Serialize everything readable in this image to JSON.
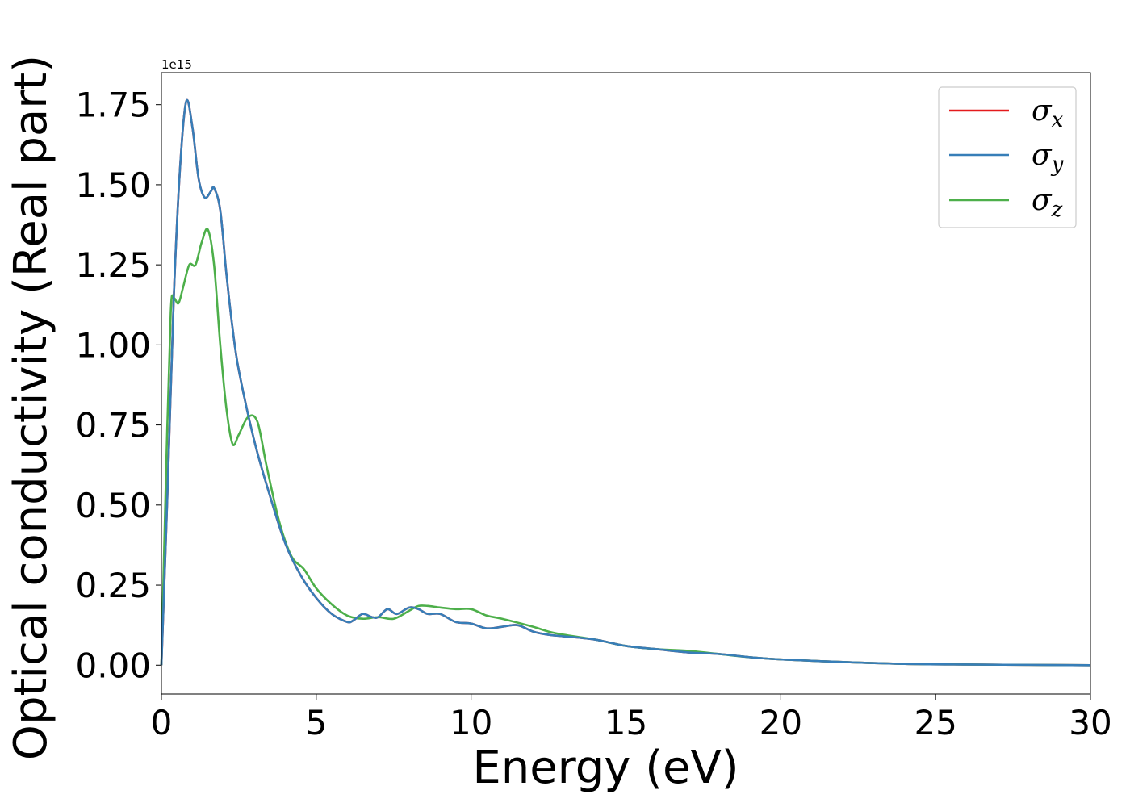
{
  "chart_data": {
    "type": "line",
    "xlabel": "Energy (eV)",
    "ylabel": "Optical conductivity (Real part)",
    "offset_text": "1e15",
    "xlim": [
      0,
      30
    ],
    "ylim": [
      -0.09,
      1.85
    ],
    "x_ticks": [
      0,
      5,
      10,
      15,
      20,
      25,
      30
    ],
    "x_tick_labels": [
      "0",
      "5",
      "10",
      "15",
      "20",
      "25",
      "30"
    ],
    "y_ticks": [
      0.0,
      0.25,
      0.5,
      0.75,
      1.0,
      1.25,
      1.5,
      1.75
    ],
    "y_tick_labels": [
      "0.00",
      "0.25",
      "0.50",
      "0.75",
      "1.00",
      "1.25",
      "1.50",
      "1.75"
    ],
    "grid": false,
    "legend_position": "top-right",
    "series": [
      {
        "name": "σx",
        "symbol": "σ",
        "subscript": "x",
        "color": "#e41a1c",
        "points": [
          [
            0,
            0
          ],
          [
            0.2,
            0.55
          ],
          [
            0.4,
            1.15
          ],
          [
            0.6,
            1.55
          ],
          [
            0.8,
            1.76
          ],
          [
            1.0,
            1.68
          ],
          [
            1.2,
            1.52
          ],
          [
            1.4,
            1.46
          ],
          [
            1.6,
            1.48
          ],
          [
            1.7,
            1.49
          ],
          [
            1.9,
            1.42
          ],
          [
            2.1,
            1.22
          ],
          [
            2.3,
            1.05
          ],
          [
            2.5,
            0.92
          ],
          [
            3.0,
            0.7
          ],
          [
            3.5,
            0.53
          ],
          [
            4.0,
            0.38
          ],
          [
            4.5,
            0.28
          ],
          [
            5.0,
            0.21
          ],
          [
            5.5,
            0.16
          ],
          [
            6.0,
            0.135
          ],
          [
            6.2,
            0.14
          ],
          [
            6.5,
            0.16
          ],
          [
            6.8,
            0.15
          ],
          [
            7.0,
            0.15
          ],
          [
            7.3,
            0.175
          ],
          [
            7.6,
            0.16
          ],
          [
            8.0,
            0.18
          ],
          [
            8.3,
            0.175
          ],
          [
            8.6,
            0.16
          ],
          [
            9.0,
            0.16
          ],
          [
            9.5,
            0.135
          ],
          [
            10.0,
            0.13
          ],
          [
            10.5,
            0.115
          ],
          [
            11.0,
            0.12
          ],
          [
            11.5,
            0.125
          ],
          [
            12.0,
            0.105
          ],
          [
            12.5,
            0.095
          ],
          [
            13.0,
            0.09
          ],
          [
            14.0,
            0.08
          ],
          [
            15.0,
            0.06
          ],
          [
            16.0,
            0.05
          ],
          [
            17.0,
            0.04
          ],
          [
            18.0,
            0.035
          ],
          [
            19.0,
            0.025
          ],
          [
            20.0,
            0.018
          ],
          [
            22.0,
            0.01
          ],
          [
            24.0,
            0.004
          ],
          [
            26.0,
            0.002
          ],
          [
            28.0,
            0.001
          ],
          [
            30.0,
            0.0
          ]
        ]
      },
      {
        "name": "σy",
        "symbol": "σ",
        "subscript": "y",
        "color": "#377eb8",
        "points": [
          [
            0,
            0
          ],
          [
            0.2,
            0.55
          ],
          [
            0.4,
            1.15
          ],
          [
            0.6,
            1.55
          ],
          [
            0.8,
            1.76
          ],
          [
            1.0,
            1.68
          ],
          [
            1.2,
            1.52
          ],
          [
            1.4,
            1.46
          ],
          [
            1.6,
            1.48
          ],
          [
            1.7,
            1.49
          ],
          [
            1.9,
            1.42
          ],
          [
            2.1,
            1.22
          ],
          [
            2.3,
            1.05
          ],
          [
            2.5,
            0.92
          ],
          [
            3.0,
            0.7
          ],
          [
            3.5,
            0.53
          ],
          [
            4.0,
            0.38
          ],
          [
            4.5,
            0.28
          ],
          [
            5.0,
            0.21
          ],
          [
            5.5,
            0.16
          ],
          [
            6.0,
            0.135
          ],
          [
            6.2,
            0.14
          ],
          [
            6.5,
            0.16
          ],
          [
            6.8,
            0.15
          ],
          [
            7.0,
            0.15
          ],
          [
            7.3,
            0.175
          ],
          [
            7.6,
            0.16
          ],
          [
            8.0,
            0.18
          ],
          [
            8.3,
            0.175
          ],
          [
            8.6,
            0.16
          ],
          [
            9.0,
            0.16
          ],
          [
            9.5,
            0.135
          ],
          [
            10.0,
            0.13
          ],
          [
            10.5,
            0.115
          ],
          [
            11.0,
            0.12
          ],
          [
            11.5,
            0.125
          ],
          [
            12.0,
            0.105
          ],
          [
            12.5,
            0.095
          ],
          [
            13.0,
            0.09
          ],
          [
            14.0,
            0.08
          ],
          [
            15.0,
            0.06
          ],
          [
            16.0,
            0.05
          ],
          [
            17.0,
            0.04
          ],
          [
            18.0,
            0.035
          ],
          [
            19.0,
            0.025
          ],
          [
            20.0,
            0.018
          ],
          [
            22.0,
            0.01
          ],
          [
            24.0,
            0.004
          ],
          [
            26.0,
            0.002
          ],
          [
            28.0,
            0.001
          ],
          [
            30.0,
            0.0
          ]
        ]
      },
      {
        "name": "σz",
        "symbol": "σ",
        "subscript": "z",
        "color": "#4daf4a",
        "points": [
          [
            0,
            0
          ],
          [
            0.15,
            0.6
          ],
          [
            0.3,
            1.1
          ],
          [
            0.4,
            1.145
          ],
          [
            0.55,
            1.13
          ],
          [
            0.7,
            1.18
          ],
          [
            0.9,
            1.25
          ],
          [
            1.1,
            1.25
          ],
          [
            1.3,
            1.32
          ],
          [
            1.5,
            1.36
          ],
          [
            1.7,
            1.25
          ],
          [
            1.9,
            1.0
          ],
          [
            2.1,
            0.8
          ],
          [
            2.3,
            0.69
          ],
          [
            2.5,
            0.72
          ],
          [
            2.8,
            0.775
          ],
          [
            3.1,
            0.76
          ],
          [
            3.4,
            0.62
          ],
          [
            3.8,
            0.45
          ],
          [
            4.2,
            0.34
          ],
          [
            4.6,
            0.3
          ],
          [
            5.0,
            0.24
          ],
          [
            5.5,
            0.19
          ],
          [
            6.0,
            0.155
          ],
          [
            6.5,
            0.145
          ],
          [
            7.0,
            0.15
          ],
          [
            7.5,
            0.145
          ],
          [
            8.0,
            0.17
          ],
          [
            8.3,
            0.185
          ],
          [
            8.6,
            0.185
          ],
          [
            9.0,
            0.18
          ],
          [
            9.5,
            0.175
          ],
          [
            10.0,
            0.175
          ],
          [
            10.5,
            0.155
          ],
          [
            11.0,
            0.145
          ],
          [
            12.0,
            0.12
          ],
          [
            12.5,
            0.105
          ],
          [
            13.0,
            0.095
          ],
          [
            14.0,
            0.08
          ],
          [
            15.0,
            0.06
          ],
          [
            16.0,
            0.05
          ],
          [
            17.0,
            0.045
          ],
          [
            18.0,
            0.035
          ],
          [
            19.0,
            0.025
          ],
          [
            20.0,
            0.018
          ],
          [
            22.0,
            0.01
          ],
          [
            24.0,
            0.004
          ],
          [
            26.0,
            0.002
          ],
          [
            28.0,
            0.001
          ],
          [
            30.0,
            0.0
          ]
        ]
      }
    ]
  }
}
